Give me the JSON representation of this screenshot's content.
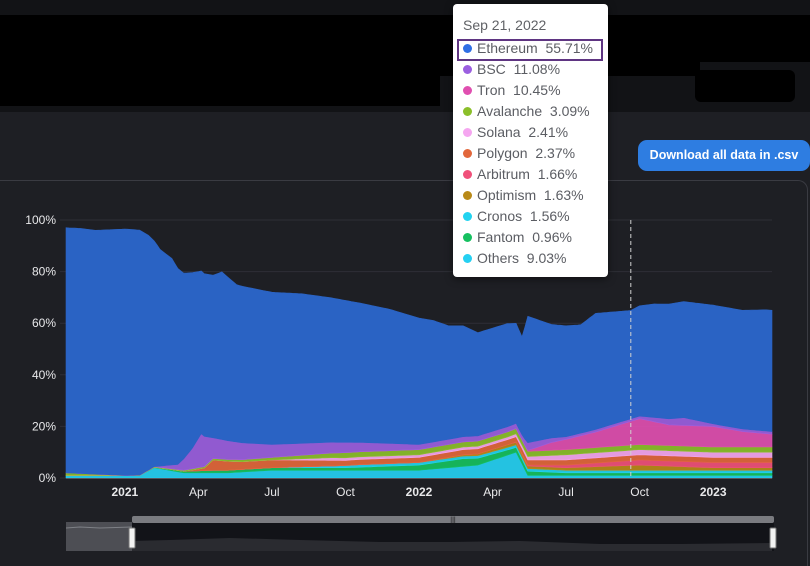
{
  "download_button": {
    "label": "Download all data in .csv",
    "color": "#2e7de1"
  },
  "tooltip": {
    "date": "Sep 21, 2022",
    "highlighted_index": 0,
    "rows": [
      {
        "name": "Ethereum",
        "value": "55.71%",
        "color": "#2f6fe4"
      },
      {
        "name": "BSC",
        "value": "11.08%",
        "color": "#9b5fe0"
      },
      {
        "name": "Tron",
        "value": "10.45%",
        "color": "#e04fb0"
      },
      {
        "name": "Avalanche",
        "value": "3.09%",
        "color": "#8bbf2a"
      },
      {
        "name": "Solana",
        "value": "2.41%",
        "color": "#f5a6f0"
      },
      {
        "name": "Polygon",
        "value": "2.37%",
        "color": "#e2673b"
      },
      {
        "name": "Arbitrum",
        "value": "1.66%",
        "color": "#f0507a"
      },
      {
        "name": "Optimism",
        "value": "1.63%",
        "color": "#b98a18"
      },
      {
        "name": "Cronos",
        "value": "1.56%",
        "color": "#22d3f0"
      },
      {
        "name": "Fantom",
        "value": "0.96%",
        "color": "#16c060"
      },
      {
        "name": "Others",
        "value": "9.03%",
        "color": "#25d0f2"
      }
    ]
  },
  "chart_data": {
    "type": "area",
    "stacked": true,
    "ylim": [
      0,
      100
    ],
    "grid": true,
    "y_ticks": [
      "0%",
      "20%",
      "40%",
      "60%",
      "80%",
      "100%"
    ],
    "x_ticks": [
      {
        "label": "2021",
        "bold": true,
        "x": 2021.0
      },
      {
        "label": "Apr",
        "bold": false,
        "x": 2021.25
      },
      {
        "label": "Jul",
        "bold": false,
        "x": 2021.5
      },
      {
        "label": "Oct",
        "bold": false,
        "x": 2021.75
      },
      {
        "label": "2022",
        "bold": true,
        "x": 2022.0
      },
      {
        "label": "Apr",
        "bold": false,
        "x": 2022.25
      },
      {
        "label": "Jul",
        "bold": false,
        "x": 2022.5
      },
      {
        "label": "Oct",
        "bold": false,
        "x": 2022.75
      },
      {
        "label": "2023",
        "bold": true,
        "x": 2023.0
      }
    ],
    "xlim": [
      2020.8,
      2023.2
    ],
    "crosshair_x": 2022.72,
    "series": [
      {
        "name": "Others",
        "color": "#25d0f2",
        "points": [
          [
            2020.8,
            1
          ],
          [
            2020.95,
            1
          ],
          [
            2021.0,
            1
          ],
          [
            2021.05,
            1
          ],
          [
            2021.1,
            4
          ],
          [
            2021.2,
            2
          ],
          [
            2021.35,
            2
          ],
          [
            2021.5,
            3
          ],
          [
            2021.75,
            3
          ],
          [
            2022.0,
            3
          ],
          [
            2022.2,
            5
          ],
          [
            2022.33,
            10
          ],
          [
            2022.37,
            1
          ],
          [
            2022.5,
            1
          ],
          [
            2022.75,
            1
          ],
          [
            2023.0,
            1
          ],
          [
            2023.2,
            1
          ]
        ]
      },
      {
        "name": "Fantom",
        "color": "#16c060",
        "points": [
          [
            2020.8,
            0
          ],
          [
            2021.05,
            0
          ],
          [
            2021.3,
            1
          ],
          [
            2021.5,
            1
          ],
          [
            2021.75,
            1
          ],
          [
            2022.0,
            2
          ],
          [
            2022.15,
            3
          ],
          [
            2022.3,
            2
          ],
          [
            2022.5,
            1
          ],
          [
            2022.75,
            1
          ],
          [
            2023.0,
            1
          ],
          [
            2023.2,
            1
          ]
        ]
      },
      {
        "name": "Cronos",
        "color": "#22d3f0",
        "points": [
          [
            2020.8,
            0
          ],
          [
            2021.5,
            0
          ],
          [
            2021.8,
            1
          ],
          [
            2022.0,
            1
          ],
          [
            2022.3,
            1
          ],
          [
            2022.5,
            1
          ],
          [
            2022.75,
            1
          ],
          [
            2023.0,
            1
          ],
          [
            2023.2,
            1
          ]
        ]
      },
      {
        "name": "Optimism",
        "color": "#b98a18",
        "points": [
          [
            2020.8,
            0
          ],
          [
            2022.0,
            0
          ],
          [
            2022.3,
            1
          ],
          [
            2022.5,
            1
          ],
          [
            2022.75,
            2
          ],
          [
            2023.0,
            1
          ],
          [
            2023.2,
            1
          ]
        ]
      },
      {
        "name": "Arbitrum",
        "color": "#f0507a",
        "points": [
          [
            2020.8,
            0
          ],
          [
            2022.3,
            0
          ],
          [
            2022.5,
            1
          ],
          [
            2022.75,
            2
          ],
          [
            2023.0,
            2
          ],
          [
            2023.2,
            2
          ]
        ]
      },
      {
        "name": "Polygon",
        "color": "#e2673b",
        "points": [
          [
            2020.8,
            0
          ],
          [
            2021.2,
            0
          ],
          [
            2021.27,
            1
          ],
          [
            2021.3,
            4
          ],
          [
            2021.4,
            3
          ],
          [
            2021.5,
            3
          ],
          [
            2021.75,
            2
          ],
          [
            2022.0,
            2
          ],
          [
            2022.3,
            2
          ],
          [
            2022.5,
            2
          ],
          [
            2022.75,
            2
          ],
          [
            2023.0,
            2
          ],
          [
            2023.2,
            2
          ]
        ]
      },
      {
        "name": "Solana",
        "color": "#f5a6f0",
        "points": [
          [
            2020.8,
            0
          ],
          [
            2021.5,
            0
          ],
          [
            2021.7,
            1
          ],
          [
            2022.0,
            1
          ],
          [
            2022.3,
            1
          ],
          [
            2022.5,
            2
          ],
          [
            2022.75,
            2
          ],
          [
            2023.0,
            2
          ],
          [
            2023.2,
            2
          ]
        ]
      },
      {
        "name": "Avalanche",
        "color": "#8bbf2a",
        "points": [
          [
            2020.8,
            1
          ],
          [
            2021.0,
            0
          ],
          [
            2021.5,
            1
          ],
          [
            2021.75,
            2
          ],
          [
            2022.0,
            2
          ],
          [
            2022.3,
            2
          ],
          [
            2022.5,
            2
          ],
          [
            2022.75,
            2
          ],
          [
            2023.0,
            2
          ],
          [
            2023.2,
            2
          ]
        ]
      },
      {
        "name": "Tron",
        "color": "#e04fb0",
        "points": [
          [
            2020.8,
            0
          ],
          [
            2022.36,
            0
          ],
          [
            2022.45,
            3
          ],
          [
            2022.6,
            6
          ],
          [
            2022.75,
            10
          ],
          [
            2022.85,
            8
          ],
          [
            2023.0,
            8
          ],
          [
            2023.1,
            6
          ],
          [
            2023.2,
            5
          ]
        ]
      },
      {
        "name": "BSC",
        "color": "#9b5fe0",
        "points": [
          [
            2020.8,
            0
          ],
          [
            2021.1,
            0
          ],
          [
            2021.18,
            2
          ],
          [
            2021.23,
            8
          ],
          [
            2021.26,
            13
          ],
          [
            2021.3,
            8
          ],
          [
            2021.5,
            5
          ],
          [
            2021.75,
            4
          ],
          [
            2022.0,
            2
          ],
          [
            2022.2,
            2
          ],
          [
            2022.35,
            2
          ],
          [
            2022.37,
            3
          ],
          [
            2022.5,
            1
          ],
          [
            2022.75,
            1
          ],
          [
            2022.9,
            3
          ],
          [
            2023.0,
            1
          ],
          [
            2023.2,
            1
          ]
        ]
      },
      {
        "name": "Ethereum",
        "color": "#2a63c4",
        "points": [
          [
            2020.8,
            95
          ],
          [
            2020.85,
            95
          ],
          [
            2020.9,
            94.5
          ],
          [
            2020.95,
            95
          ],
          [
            2021.0,
            95.5
          ],
          [
            2021.05,
            95
          ],
          [
            2021.08,
            91
          ],
          [
            2021.12,
            84
          ],
          [
            2021.16,
            80
          ],
          [
            2021.2,
            72
          ],
          [
            2021.23,
            68
          ],
          [
            2021.26,
            63
          ],
          [
            2021.3,
            63
          ],
          [
            2021.33,
            65
          ],
          [
            2021.38,
            61
          ],
          [
            2021.5,
            59
          ],
          [
            2021.6,
            58
          ],
          [
            2021.75,
            55
          ],
          [
            2021.9,
            52
          ],
          [
            2022.0,
            49
          ],
          [
            2022.05,
            47
          ],
          [
            2022.1,
            44
          ],
          [
            2022.15,
            43
          ],
          [
            2022.2,
            40
          ],
          [
            2022.25,
            40
          ],
          [
            2022.3,
            40
          ],
          [
            2022.35,
            38
          ],
          [
            2022.37,
            49
          ],
          [
            2022.45,
            44
          ],
          [
            2022.55,
            42
          ],
          [
            2022.6,
            45
          ],
          [
            2022.72,
            42
          ],
          [
            2022.8,
            44
          ],
          [
            2022.9,
            45
          ],
          [
            2023.0,
            46
          ],
          [
            2023.1,
            46
          ],
          [
            2023.18,
            47
          ],
          [
            2023.2,
            47
          ]
        ]
      }
    ]
  }
}
